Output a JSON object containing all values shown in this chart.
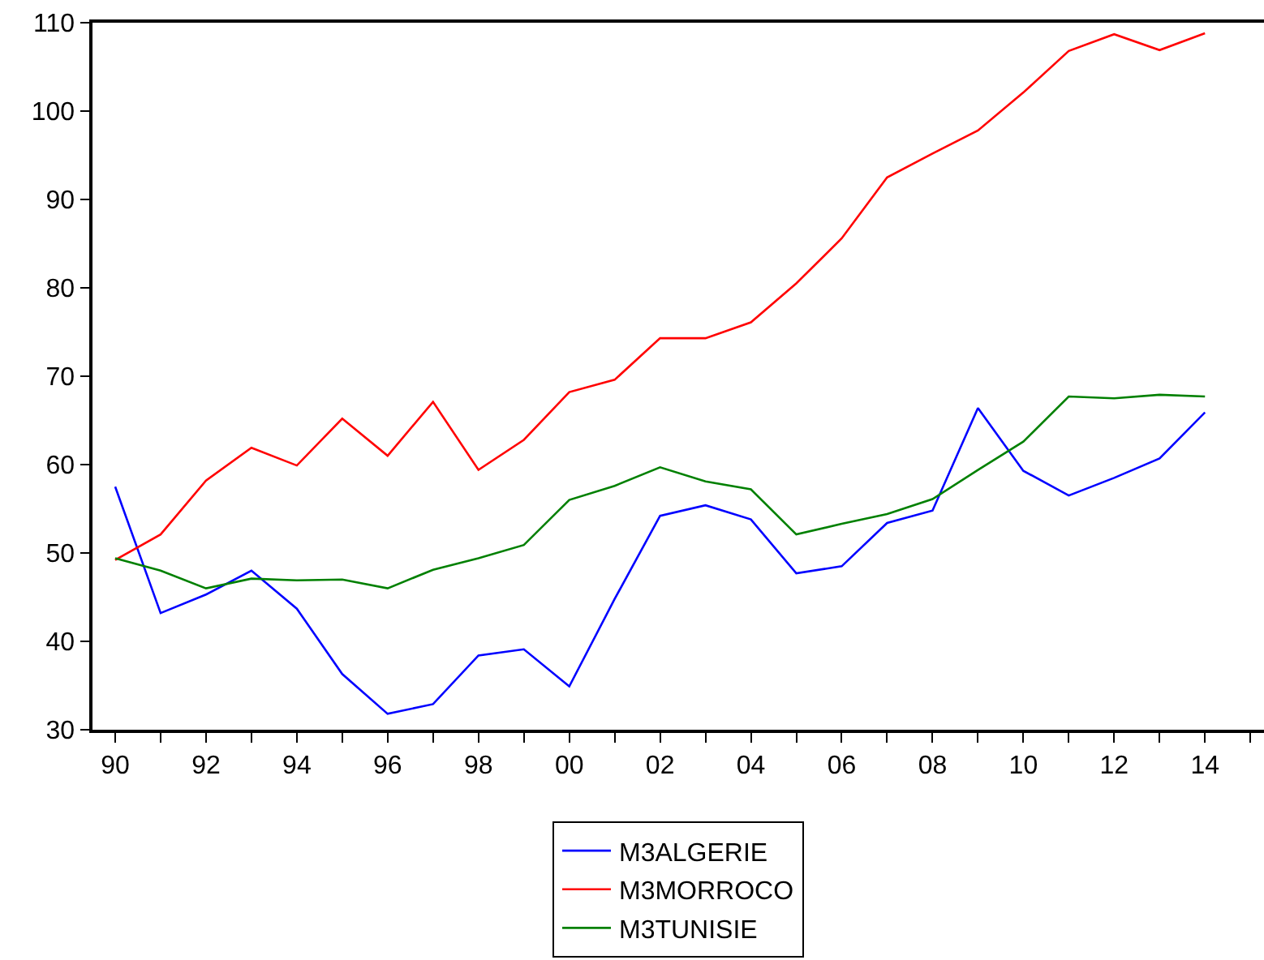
{
  "chart_data": {
    "type": "line",
    "x": [
      1990,
      1991,
      1992,
      1993,
      1994,
      1995,
      1996,
      1997,
      1998,
      1999,
      2000,
      2001,
      2002,
      2003,
      2004,
      2005,
      2006,
      2007,
      2008,
      2009,
      2010,
      2011,
      2012,
      2013,
      2014
    ],
    "series": [
      {
        "name": "M3ALGERIE",
        "color": "#0000ff",
        "values": [
          57.5,
          43.2,
          45.3,
          48.0,
          43.7,
          36.3,
          31.8,
          32.9,
          38.4,
          39.1,
          34.9,
          44.8,
          54.2,
          55.4,
          53.8,
          47.7,
          48.5,
          53.4,
          54.8,
          66.4,
          59.3,
          56.5,
          58.5,
          60.7,
          65.9
        ]
      },
      {
        "name": "M3MORROCO",
        "color": "#ff0000",
        "values": [
          49.2,
          52.1,
          58.2,
          61.9,
          59.9,
          65.2,
          61.0,
          67.1,
          59.4,
          62.8,
          68.2,
          69.6,
          74.3,
          74.3,
          76.1,
          80.5,
          85.6,
          92.5,
          95.2,
          97.8,
          102.1,
          106.8,
          108.7,
          106.9,
          108.8
        ]
      },
      {
        "name": "M3TUNISIE",
        "color": "#008000",
        "values": [
          49.4,
          48.0,
          46.0,
          47.1,
          46.9,
          47.0,
          46.0,
          48.1,
          49.4,
          50.9,
          56.0,
          57.6,
          59.7,
          58.1,
          57.2,
          52.1,
          53.3,
          54.4,
          56.1,
          59.4,
          62.6,
          67.7,
          67.5,
          67.9,
          67.7
        ]
      }
    ],
    "xlim": [
      1989.5,
      2015.3
    ],
    "xticks": [
      {
        "value": 1990,
        "label": "90"
      },
      {
        "value": 1991,
        "label": null
      },
      {
        "value": 1992,
        "label": "92"
      },
      {
        "value": 1993,
        "label": null
      },
      {
        "value": 1994,
        "label": "94"
      },
      {
        "value": 1995,
        "label": null
      },
      {
        "value": 1996,
        "label": "96"
      },
      {
        "value": 1997,
        "label": null
      },
      {
        "value": 1998,
        "label": "98"
      },
      {
        "value": 1999,
        "label": null
      },
      {
        "value": 2000,
        "label": "00"
      },
      {
        "value": 2001,
        "label": null
      },
      {
        "value": 2002,
        "label": "02"
      },
      {
        "value": 2003,
        "label": null
      },
      {
        "value": 2004,
        "label": "04"
      },
      {
        "value": 2005,
        "label": null
      },
      {
        "value": 2006,
        "label": "06"
      },
      {
        "value": 2007,
        "label": null
      },
      {
        "value": 2008,
        "label": "08"
      },
      {
        "value": 2009,
        "label": null
      },
      {
        "value": 2010,
        "label": "10"
      },
      {
        "value": 2011,
        "label": null
      },
      {
        "value": 2012,
        "label": "12"
      },
      {
        "value": 2013,
        "label": null
      },
      {
        "value": 2014,
        "label": "14"
      },
      {
        "value": 2015,
        "label": null
      }
    ],
    "ylim": [
      30,
      110
    ],
    "yticks": [
      30,
      40,
      50,
      60,
      70,
      80,
      90,
      100,
      110
    ],
    "grid": false,
    "legend": "bottom",
    "marker": "none",
    "line_style": "solid"
  }
}
